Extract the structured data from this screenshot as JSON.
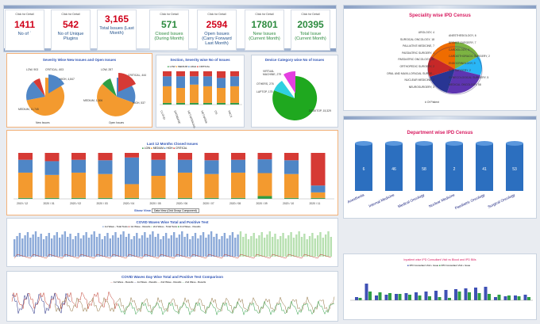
{
  "kpis": [
    {
      "click": "Click for Detail",
      "value": "1411",
      "label": "No of ´"
    },
    {
      "click": "Click for Detail",
      "value": "542",
      "label": "No of Unique Plugins"
    },
    {
      "click": "",
      "value": "3,165",
      "label": "Total Issues (Last Month)"
    },
    {
      "click": "Click for Detail",
      "value": "571",
      "label": "Closed Issues (During Month)"
    },
    {
      "click": "Click for Detail",
      "value": "2594",
      "label": "Open Issues (Carry Forward Last Month)"
    },
    {
      "click": "Click for Detail",
      "value": "17801",
      "label": "New Issues (Current Month)"
    },
    {
      "click": "Click for Detail",
      "value": "20395",
      "label": "Total Issue (Current Month)"
    }
  ],
  "severity": {
    "title": "Severity Wise New Issues and Open Issues",
    "new_caption": "New Issues",
    "open_caption": "Open Issues",
    "new_labels": [
      "LOW, 903",
      "CRITICAL, 603",
      "HIGH, 4,847",
      "MEDIUM, 11,745"
    ],
    "open_labels": [
      "LOW, 287",
      "CRITICAL, 444",
      "MEDIUM, 1,306",
      "HIGH, 537"
    ]
  },
  "section": {
    "title": "Section, Severity wise No of Issues",
    "legend": [
      "LOW",
      "MEDIUM",
      "HIGH",
      "CRITICAL"
    ],
    "categories": [
      "CLOUD",
      "DATABASE",
      "NETWORKING",
      "NETWORK",
      "OS",
      "PACS"
    ]
  },
  "device": {
    "title": "Device Category wise No of Issues",
    "labels": [
      "VIRTUAL MACHINE, 279",
      "OTHERS, 276",
      "LAPTOP, 175",
      "DESKTOP, 15,329"
    ]
  },
  "closed": {
    "title": "Last 12 Months Closed Issues",
    "legend": [
      "LOW",
      "MEDIUM",
      "HIGH",
      "CRITICAL"
    ],
    "months": [
      "2019 / 12",
      "2020 / 01",
      "2020 / 02",
      "2020 / 03",
      "2020 / 04",
      "2020 / 05",
      "2020 / 06",
      "2020 / 07",
      "2020 / 08",
      "2020 / 09",
      "2020 / 10",
      "2020 / 11"
    ],
    "show_view_label": "Show View",
    "show_view_value": "Data View (Grid Group Component)"
  },
  "covid_total": {
    "title": "COVID Waves Wise Total and Positive Test",
    "legend": [
      "1st Wave - Total Tests",
      "1st Wave - Results",
      "2nd Wave - Total Tests",
      "2nd Wave - Results"
    ]
  },
  "covid_day": {
    "title": "COVID Waves Day Wise Total and Positive Test Comparison",
    "legend": [
      "1st Wave - Results",
      "1st Wave - Results",
      "2nd Wave - Results",
      "2nd Wave - Results"
    ]
  },
  "speciality": {
    "title": "Speciality wise IPD Census",
    "caption": "# Of Patient",
    "left_labels": [
      "UROLOGY, 4",
      "SURGICAL ONCOLOGY, 18",
      "PALLIATIVE MEDICINE, 7",
      "PAEDIATRIC SURGERY, 1",
      "PAEDIATRIC ONCOLOGY, 36",
      "ORTHOPEDIC SURGERY, 2",
      "ORAL AND MAXILLOFACIAL SURGE...",
      "NUCLEAR MEDICINE, 2",
      "NEUROSURGERY, 3"
    ],
    "right_labels": [
      "ANESTHESIOLOGY, 6",
      "BREAST SURGERY, 7",
      "CARDIOLOGY, 4",
      "CARDIOTHORACIC SURGERY, 2",
      "ENDOCRINOLOGY, 9",
      "ENT SURGERY, 2",
      "GYNECOLOGICAL SURGERY, 5",
      "MEDICAL ONCOLOGY, 58"
    ]
  },
  "department": {
    "title": "Department wise IPD Census",
    "categories": [
      "Anesthesia",
      "Internal Medicine",
      "Medical Oncology",
      "Nuclear Medicine",
      "Paediatric Oncology",
      "Surgical Oncology"
    ],
    "values": [
      6,
      46,
      58,
      2,
      41,
      53
    ]
  },
  "cases": {
    "title": "Inpatient wise IPD Consultant Visit vs Blood and IPD Bills",
    "legend": [
      "IPD Consultant Visit • Issue",
      "IPD Consultant Visit • Issue"
    ]
  },
  "colors": {
    "low": "#2e9e44",
    "medium": "#f39a2f",
    "high": "#4f86c6",
    "critical": "#d63a35",
    "accent": "#2f54b5",
    "title_red": "#d81b60"
  }
}
